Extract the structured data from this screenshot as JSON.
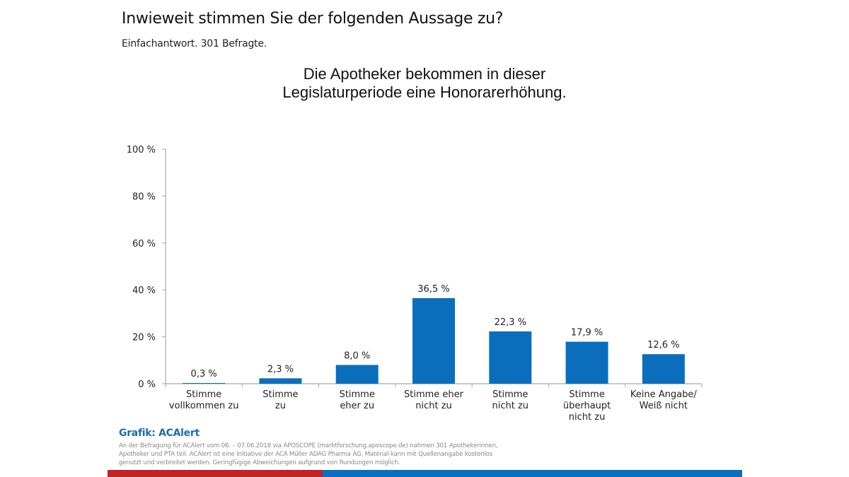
{
  "header": {
    "question": "Inwieweit stimmen Sie der folgenden Aussage zu?",
    "subtitle": "Einfachantwort. 301 Befragte."
  },
  "chart_data": {
    "type": "bar",
    "title_lines": [
      "Die Apotheker bekommen in dieser",
      "Legislaturperiode eine Honorarerhöhung."
    ],
    "categories": [
      [
        "Stimme",
        "vollkommen zu"
      ],
      [
        "Stimme",
        "zu"
      ],
      [
        "Stimme",
        "eher zu"
      ],
      [
        "Stimme eher",
        "nicht zu"
      ],
      [
        "Stimme",
        "nicht zu"
      ],
      [
        "Stimme",
        "überhaupt",
        "nicht zu"
      ],
      [
        "Keine Angabe/",
        "Weiß nicht"
      ]
    ],
    "values": [
      0.3,
      2.3,
      8.0,
      36.5,
      22.3,
      17.9,
      12.6
    ],
    "value_labels": [
      "0,3 %",
      "2,3 %",
      "8,0 %",
      "36,5 %",
      "22,3 %",
      "17,9 %",
      "12,6 %"
    ],
    "yticks": [
      0,
      20,
      40,
      60,
      80,
      100
    ],
    "ytick_labels": [
      "0 %",
      "20 %",
      "40 %",
      "60 %",
      "80 %",
      "100 %"
    ],
    "ylim": [
      0,
      100
    ],
    "xlabel": "",
    "ylabel": "",
    "grid": false,
    "legend": "none",
    "bar_color": "#0a6ebd"
  },
  "footer": {
    "credit": "Grafik: ACAlert",
    "note": "An der Befragung für ACAlert vom 06. – 07.06.2018 via APOSCOPE (marktforschung.aposcope.de) nahmen 301 Apothekerinnen, Apotheker und PTA teil. ACAlert ist eine Initiative der ACA Müller ADAG Pharma AG. Material kann mit Quellenangabe kostenlos genutzt und verbreitet werden. Geringfügige Abweichungen aufgrund von Rundungen möglich.",
    "accent_colors": [
      "#c12127",
      "#0a6ebd"
    ]
  }
}
